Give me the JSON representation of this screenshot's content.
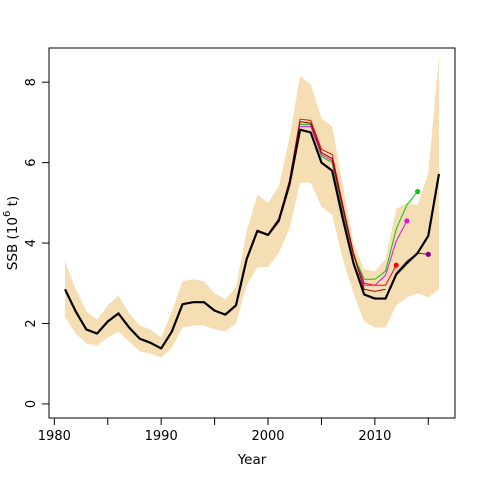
{
  "chart_data": {
    "type": "line",
    "xlabel": "Year",
    "ylabel": "SSB (10^6 t)",
    "xlim": [
      1979.5,
      2017.5
    ],
    "ylim": [
      -0.35,
      8.85
    ],
    "xticks": [
      1980,
      1990,
      2000,
      2010
    ],
    "yticks": [
      0,
      2,
      4,
      6,
      8
    ],
    "grid": false,
    "colors": {
      "band": "#f5deb3",
      "main": "#000000",
      "dark_red": "#8b0000",
      "red": "#ff0000",
      "green": "#00cc00",
      "magenta": "#e010e0",
      "purple": "#800080"
    },
    "band": {
      "x": [
        1981,
        1982,
        1983,
        1984,
        1985,
        1986,
        1987,
        1988,
        1989,
        1990,
        1991,
        1992,
        1993,
        1994,
        1995,
        1996,
        1997,
        1998,
        1999,
        2000,
        2001,
        2002,
        2003,
        2004,
        2005,
        2006,
        2007,
        2008,
        2009,
        2010,
        2011,
        2012,
        2013,
        2014,
        2015,
        2016
      ],
      "lower": [
        2.15,
        1.75,
        1.5,
        1.45,
        1.65,
        1.8,
        1.55,
        1.3,
        1.25,
        1.15,
        1.4,
        1.9,
        1.95,
        1.95,
        1.85,
        1.8,
        2.0,
        2.95,
        3.4,
        3.4,
        3.75,
        4.35,
        5.5,
        5.5,
        4.9,
        4.7,
        3.6,
        2.75,
        2.05,
        1.9,
        1.9,
        2.45,
        2.65,
        2.75,
        2.65,
        2.85
      ],
      "upper": [
        3.55,
        2.85,
        2.3,
        2.1,
        2.45,
        2.7,
        2.25,
        1.95,
        1.85,
        1.65,
        2.3,
        3.05,
        3.1,
        3.05,
        2.75,
        2.6,
        2.9,
        4.3,
        5.2,
        5.0,
        5.4,
        6.6,
        8.15,
        7.95,
        7.1,
        6.9,
        5.45,
        4.0,
        3.35,
        3.3,
        3.6,
        4.85,
        5.0,
        4.95,
        5.75,
        8.65
      ]
    },
    "series": [
      {
        "color": "#ff0000",
        "x": [
          1981,
          1982,
          1983,
          1984,
          1985,
          1986,
          1987,
          1988,
          1989,
          1990,
          1991,
          1992,
          1993,
          1994,
          1995,
          1996,
          1997,
          1998,
          1999,
          2000,
          2001,
          2002,
          2003,
          2004,
          2005,
          2006,
          2007,
          2008,
          2009,
          2010,
          2011,
          2012
        ],
        "y": [
          2.85,
          2.3,
          1.85,
          1.75,
          2.05,
          2.25,
          1.9,
          1.62,
          1.52,
          1.38,
          1.8,
          2.48,
          2.53,
          2.53,
          2.32,
          2.22,
          2.45,
          3.62,
          4.32,
          4.22,
          4.6,
          5.55,
          7.08,
          7.05,
          6.33,
          6.2,
          4.95,
          3.75,
          3.0,
          2.95,
          2.95,
          3.45
        ],
        "end_point": true
      },
      {
        "color": "#00cc00",
        "x": [
          2003,
          2004,
          2005,
          2006,
          2007,
          2008,
          2009,
          2010,
          2011,
          2012,
          2013,
          2014
        ],
        "y": [
          6.95,
          6.95,
          6.15,
          6.0,
          4.75,
          3.7,
          3.1,
          3.1,
          3.3,
          4.35,
          4.95,
          5.28
        ],
        "end_point": true
      },
      {
        "color": "#e010e0",
        "x": [
          2003,
          2004,
          2005,
          2006,
          2007,
          2008,
          2009,
          2010,
          2011,
          2012,
          2013
        ],
        "y": [
          6.9,
          6.9,
          6.2,
          6.05,
          4.85,
          3.7,
          2.95,
          2.95,
          3.2,
          4.05,
          4.55
        ],
        "end_point": true
      },
      {
        "color": "#800080",
        "x": [
          2010,
          2011,
          2012,
          2013,
          2014,
          2015
        ],
        "y": [
          2.62,
          2.62,
          3.25,
          3.55,
          3.75,
          3.72
        ],
        "end_point": true
      },
      {
        "color": "#8b0000",
        "x": [
          1981,
          1982,
          1983,
          1984,
          1985,
          1986,
          1987,
          1988,
          1989,
          1990,
          1991,
          1992,
          1993,
          1994,
          1995,
          1996,
          1997,
          1998,
          1999,
          2000,
          2001,
          2002,
          2003,
          2004,
          2005,
          2006,
          2007,
          2008,
          2009,
          2010,
          2011
        ],
        "y": [
          2.85,
          2.3,
          1.85,
          1.75,
          2.05,
          2.25,
          1.9,
          1.62,
          1.52,
          1.38,
          1.8,
          2.48,
          2.53,
          2.53,
          2.32,
          2.22,
          2.45,
          3.62,
          4.32,
          4.22,
          4.6,
          5.52,
          7.02,
          6.98,
          6.25,
          6.1,
          4.9,
          3.72,
          2.85,
          2.8,
          2.85
        ],
        "end_point": false
      },
      {
        "color": "#000000",
        "main": true,
        "x": [
          1981,
          1982,
          1983,
          1984,
          1985,
          1986,
          1987,
          1988,
          1989,
          1990,
          1991,
          1992,
          1993,
          1994,
          1995,
          1996,
          1997,
          1998,
          1999,
          2000,
          2001,
          2002,
          2003,
          2004,
          2005,
          2006,
          2007,
          2008,
          2009,
          2010,
          2011,
          2012,
          2013,
          2014,
          2015,
          2016
        ],
        "y": [
          2.85,
          2.3,
          1.85,
          1.75,
          2.05,
          2.25,
          1.9,
          1.62,
          1.52,
          1.38,
          1.8,
          2.48,
          2.53,
          2.53,
          2.32,
          2.22,
          2.45,
          3.6,
          4.3,
          4.2,
          4.55,
          5.45,
          6.82,
          6.75,
          6.0,
          5.8,
          4.6,
          3.5,
          2.72,
          2.62,
          2.62,
          3.22,
          3.5,
          3.75,
          4.18,
          5.72
        ],
        "end_point": false
      }
    ]
  }
}
